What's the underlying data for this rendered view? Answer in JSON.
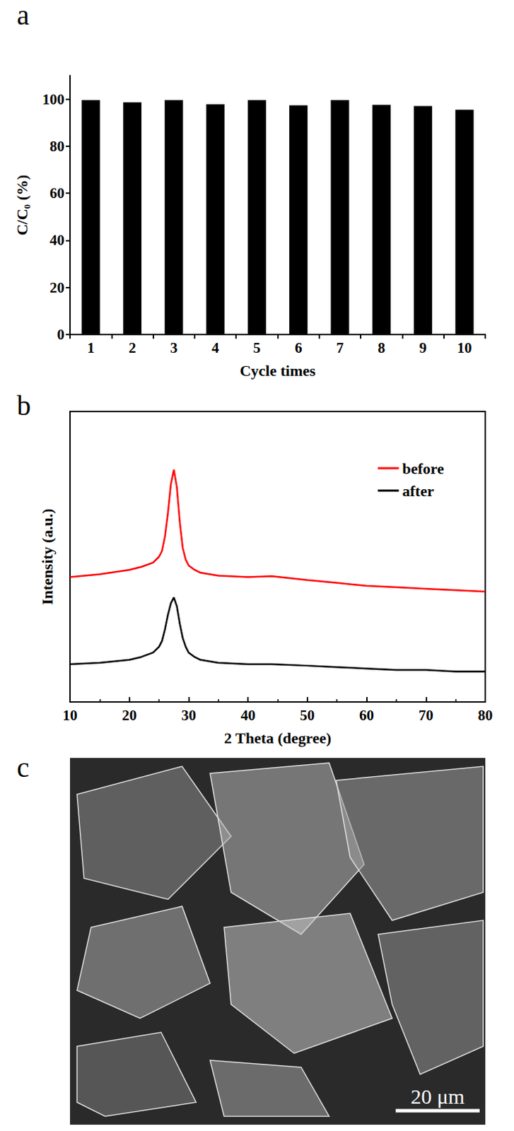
{
  "chart_data": [
    {
      "type": "bar",
      "label": "a",
      "x_label": "Cycle times",
      "y_label": "C/C₀ (%)",
      "categories": [
        "1",
        "2",
        "3",
        "4",
        "5",
        "6",
        "7",
        "8",
        "9",
        "10"
      ],
      "values": [
        99.6,
        98.6,
        99.6,
        97.8,
        99.6,
        97.4,
        99.6,
        97.6,
        97.1,
        95.5
      ],
      "color": "#000000",
      "ylim": [
        0,
        110
      ],
      "yticks": [
        0,
        20,
        40,
        60,
        80,
        100
      ],
      "grid": false
    },
    {
      "type": "line",
      "label": "b",
      "x_label": "2 Theta (degree)",
      "y_label": "Intensity (a.u.)",
      "x": [
        10,
        15,
        20,
        22,
        24,
        25,
        25.5,
        26,
        26.5,
        27,
        27.5,
        28,
        28.5,
        29,
        29.5,
        30,
        31,
        32,
        35,
        40,
        44,
        50,
        55,
        60,
        65,
        70,
        75,
        80
      ],
      "series": [
        {
          "name": "before",
          "color": "#ff0000",
          "values": [
            43,
            44,
            45.5,
            46.5,
            48,
            50,
            52,
            57,
            65,
            75,
            80,
            74,
            62,
            53,
            49,
            47,
            45.5,
            44.5,
            43.5,
            43,
            43.3,
            42,
            41,
            40,
            39.5,
            39,
            38.5,
            38
          ]
        },
        {
          "name": "after",
          "color": "#000000",
          "values": [
            13,
            13.5,
            14.5,
            15.5,
            17,
            19,
            21,
            25,
            30,
            34,
            36,
            33,
            27,
            22,
            19,
            17,
            15.5,
            14.5,
            13.5,
            13,
            13,
            12.5,
            12,
            11.5,
            11,
            11,
            10.5,
            10.5
          ]
        }
      ],
      "xlim": [
        10,
        80
      ],
      "xticks": [
        10,
        20,
        30,
        40,
        50,
        60,
        70,
        80
      ],
      "ylim": [
        0,
        100
      ],
      "tick_labels": "x",
      "legend": "upper right",
      "grid": false
    },
    {
      "type": "image",
      "label": "c",
      "scale_bar": "20 μm"
    }
  ]
}
